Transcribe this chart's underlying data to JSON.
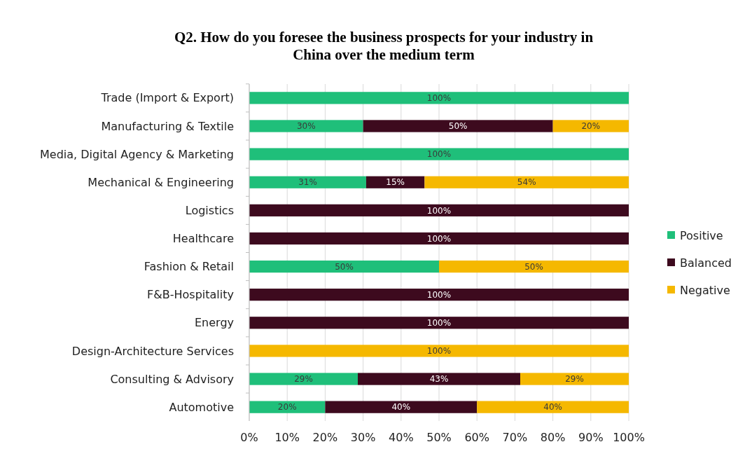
{
  "chart_data": {
    "type": "bar",
    "orientation": "horizontal",
    "stacked": true,
    "title": "Q2. How do you foresee the business prospects for your industry in China over the medium term",
    "categories": [
      "Trade (Import & Export)",
      "Manufacturing & Textile",
      "Media, Digital Agency & Marketing",
      "Mechanical & Engineering",
      "Logistics",
      "Healthcare",
      "Fashion & Retail",
      "F&B-Hospitality",
      "Energy",
      "Design-Architecture Services",
      "Consulting & Advisory",
      "Automotive"
    ],
    "series": [
      {
        "name": "Positive",
        "color": "#1fbf7a",
        "values": [
          100,
          30,
          100,
          30.8,
          0,
          0,
          50,
          0,
          0,
          0,
          28.6,
          20
        ],
        "value_labels": [
          "100%",
          "30%",
          "100%",
          "31%",
          null,
          null,
          "50%",
          null,
          null,
          null,
          "29%",
          "20%"
        ]
      },
      {
        "name": "Balanced",
        "color": "#3d0a1e",
        "values": [
          0,
          50,
          0,
          15.4,
          100,
          100,
          0,
          100,
          100,
          0,
          42.8,
          40
        ],
        "value_labels": [
          null,
          "50%",
          null,
          "15%",
          "100%",
          "100%",
          null,
          "100%",
          "100%",
          null,
          "43%",
          "40%"
        ]
      },
      {
        "name": "Negative",
        "color": "#f5b800",
        "values": [
          0,
          20,
          0,
          53.8,
          0,
          0,
          50,
          0,
          0,
          100,
          28.6,
          40
        ],
        "value_labels": [
          null,
          "20%",
          null,
          "54%",
          null,
          null,
          "50%",
          null,
          null,
          "100%",
          "29%",
          "40%"
        ]
      }
    ],
    "xlim": [
      0,
      100
    ],
    "xticks": [
      {
        "value": 0,
        "label": "0%"
      },
      {
        "value": 10,
        "label": "10%"
      },
      {
        "value": 20,
        "label": "20%"
      },
      {
        "value": 30,
        "label": "30%"
      },
      {
        "value": 40,
        "label": "40%"
      },
      {
        "value": 50,
        "label": "50%"
      },
      {
        "value": 60,
        "label": "60%"
      },
      {
        "value": 70,
        "label": "70%"
      },
      {
        "value": 80,
        "label": "80%"
      },
      {
        "value": 90,
        "label": "90%"
      },
      {
        "value": 100,
        "label": "100%"
      }
    ],
    "grid": "x",
    "legend": "right"
  }
}
